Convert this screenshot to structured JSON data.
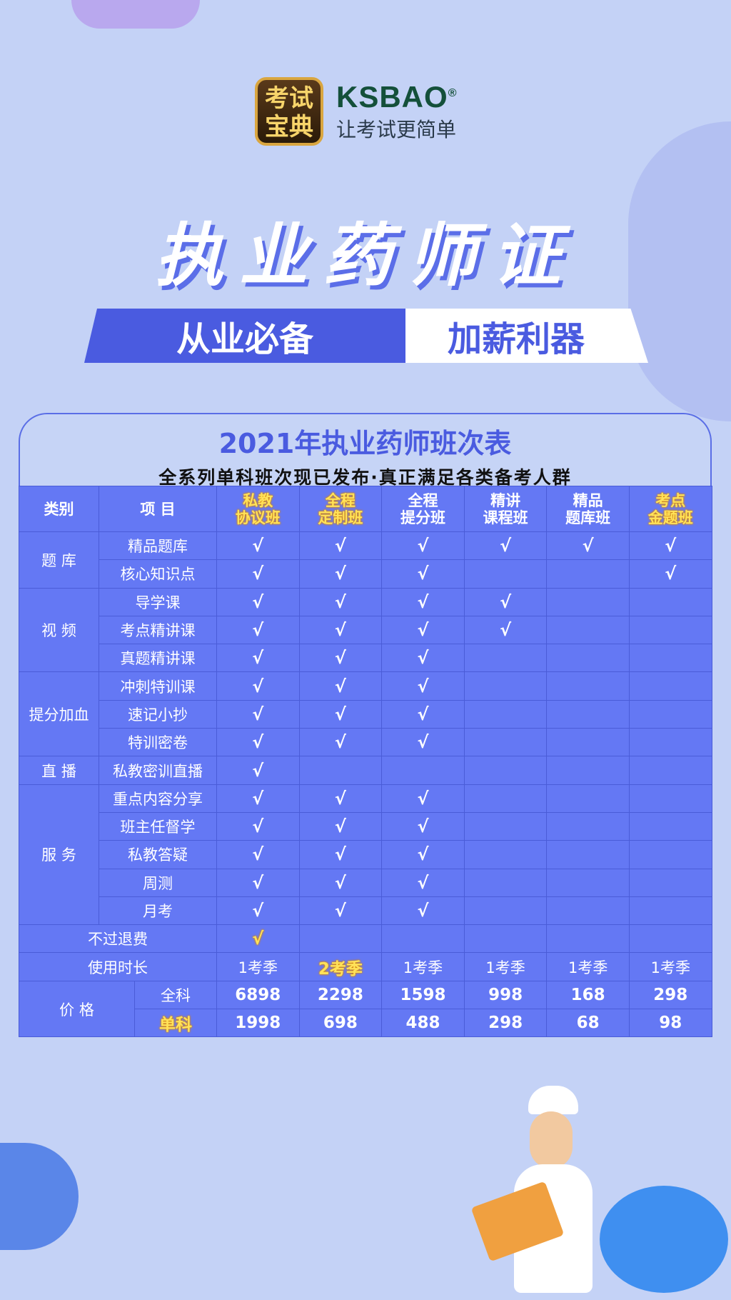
{
  "logo": {
    "badge": "考试宝典",
    "brand": "KSBAO",
    "registered": "®",
    "slogan": "让考试更简单"
  },
  "title": "执业药师证",
  "banner": {
    "left": "从业必备",
    "right": "加薪利器"
  },
  "table_title": "2021年执业药师班次表",
  "table_subtitle": "全系列单科班次现已发布·真正满足各类备考人群",
  "headers": {
    "category": "类别",
    "item": "项 目",
    "plans": [
      {
        "l1": "私教",
        "l2": "协议班",
        "gold": true
      },
      {
        "l1": "全程",
        "l2": "定制班",
        "gold": true
      },
      {
        "l1": "全程",
        "l2": "提分班",
        "gold": false
      },
      {
        "l1": "精讲",
        "l2": "课程班",
        "gold": false
      },
      {
        "l1": "精品",
        "l2": "题库班",
        "gold": false
      },
      {
        "l1": "考点",
        "l2": "金题班",
        "gold": true
      }
    ]
  },
  "check_mark": "√",
  "groups": [
    {
      "category": "题 库",
      "rows": [
        {
          "item": "精品题库",
          "checks": [
            1,
            1,
            1,
            1,
            1,
            1
          ]
        },
        {
          "item": "核心知识点",
          "checks": [
            1,
            1,
            1,
            0,
            0,
            1
          ]
        }
      ]
    },
    {
      "category": "视 频",
      "rows": [
        {
          "item": "导学课",
          "checks": [
            1,
            1,
            1,
            1,
            0,
            0
          ]
        },
        {
          "item": "考点精讲课",
          "checks": [
            1,
            1,
            1,
            1,
            0,
            0
          ]
        },
        {
          "item": "真题精讲课",
          "checks": [
            1,
            1,
            1,
            0,
            0,
            0
          ]
        }
      ]
    },
    {
      "category": "提分加血",
      "rows": [
        {
          "item": "冲刺特训课",
          "checks": [
            1,
            1,
            1,
            0,
            0,
            0
          ]
        },
        {
          "item": "速记小抄",
          "checks": [
            1,
            1,
            1,
            0,
            0,
            0
          ]
        },
        {
          "item": "特训密卷",
          "checks": [
            1,
            1,
            1,
            0,
            0,
            0
          ]
        }
      ]
    },
    {
      "category": "直 播",
      "rows": [
        {
          "item": "私教密训直播",
          "checks": [
            1,
            0,
            0,
            0,
            0,
            0
          ]
        }
      ]
    },
    {
      "category": "服 务",
      "rows": [
        {
          "item": "重点内容分享",
          "checks": [
            1,
            1,
            1,
            0,
            0,
            0
          ]
        },
        {
          "item": "班主任督学",
          "checks": [
            1,
            1,
            1,
            0,
            0,
            0
          ]
        },
        {
          "item": "私教答疑",
          "checks": [
            1,
            1,
            1,
            0,
            0,
            0
          ]
        },
        {
          "item": "周测",
          "checks": [
            1,
            1,
            1,
            0,
            0,
            0
          ]
        },
        {
          "item": "月考",
          "checks": [
            1,
            1,
            1,
            0,
            0,
            0
          ]
        }
      ]
    }
  ],
  "refund": {
    "label": "不过退费",
    "checks": [
      1,
      0,
      0,
      0,
      0,
      0
    ]
  },
  "duration": {
    "label": "使用时长",
    "values": [
      "1考季",
      "2考季",
      "1考季",
      "1考季",
      "1考季",
      "1考季"
    ],
    "highlight": [
      false,
      true,
      false,
      false,
      false,
      false
    ]
  },
  "price": {
    "label": "价 格",
    "full_label": "全科",
    "single_label": "单科",
    "full": [
      "6898",
      "2298",
      "1598",
      "998",
      "168",
      "298"
    ],
    "single": [
      "1998",
      "698",
      "488",
      "298",
      "68",
      "98"
    ]
  },
  "colors": {
    "background": "#c4d2f6",
    "table": "#6478f4",
    "accent": "#4a5be0",
    "gold": "#ffe25a",
    "brand": "#14503a"
  }
}
